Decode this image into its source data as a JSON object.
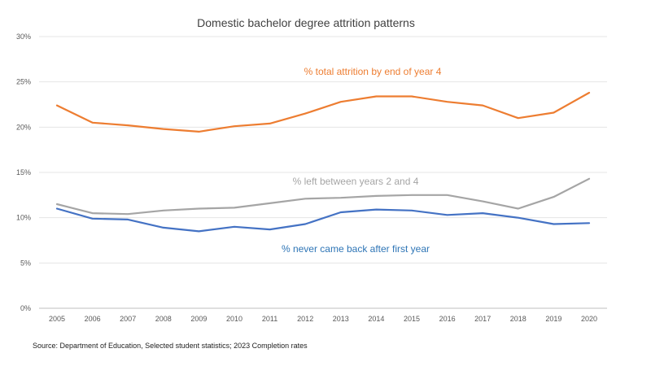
{
  "chart_data": {
    "type": "line",
    "title": "Domestic bachelor degree attrition patterns",
    "xlabel": "",
    "ylabel": "",
    "ylim": [
      0,
      30
    ],
    "yticks": [
      0,
      5,
      10,
      15,
      20,
      25,
      30
    ],
    "ytick_labels": [
      "0%",
      "5%",
      "10%",
      "15%",
      "20%",
      "25%",
      "30%"
    ],
    "x": [
      "2005",
      "2006",
      "2007",
      "2008",
      "2009",
      "2010",
      "2011",
      "2012",
      "2013",
      "2014",
      "2015",
      "2016",
      "2017",
      "2018",
      "2019",
      "2020"
    ],
    "grid": true,
    "legend": "inline labels",
    "series": [
      {
        "name": "% total attrition by end of year 4",
        "color": "#ED7D31",
        "values": [
          22.4,
          20.5,
          20.2,
          19.8,
          19.5,
          20.1,
          20.4,
          21.5,
          22.8,
          23.4,
          23.4,
          22.8,
          22.4,
          21.0,
          21.6,
          23.8
        ]
      },
      {
        "name": "% left between years 2 and 4",
        "color": "#A5A5A5",
        "values": [
          11.5,
          10.5,
          10.4,
          10.8,
          11.0,
          11.1,
          11.6,
          12.1,
          12.2,
          12.4,
          12.5,
          12.5,
          11.8,
          11.0,
          12.3,
          14.3
        ]
      },
      {
        "name": "% never came back after first year",
        "color": "#4472C4",
        "label_color": "#2E75B6",
        "values": [
          11.0,
          9.9,
          9.8,
          8.9,
          8.5,
          9.0,
          8.7,
          9.3,
          10.6,
          10.9,
          10.8,
          10.3,
          10.5,
          10.0,
          9.3,
          9.4
        ]
      }
    ]
  },
  "source": "Source: Department of Education, Selected student statistics; 2023 Completion rates"
}
